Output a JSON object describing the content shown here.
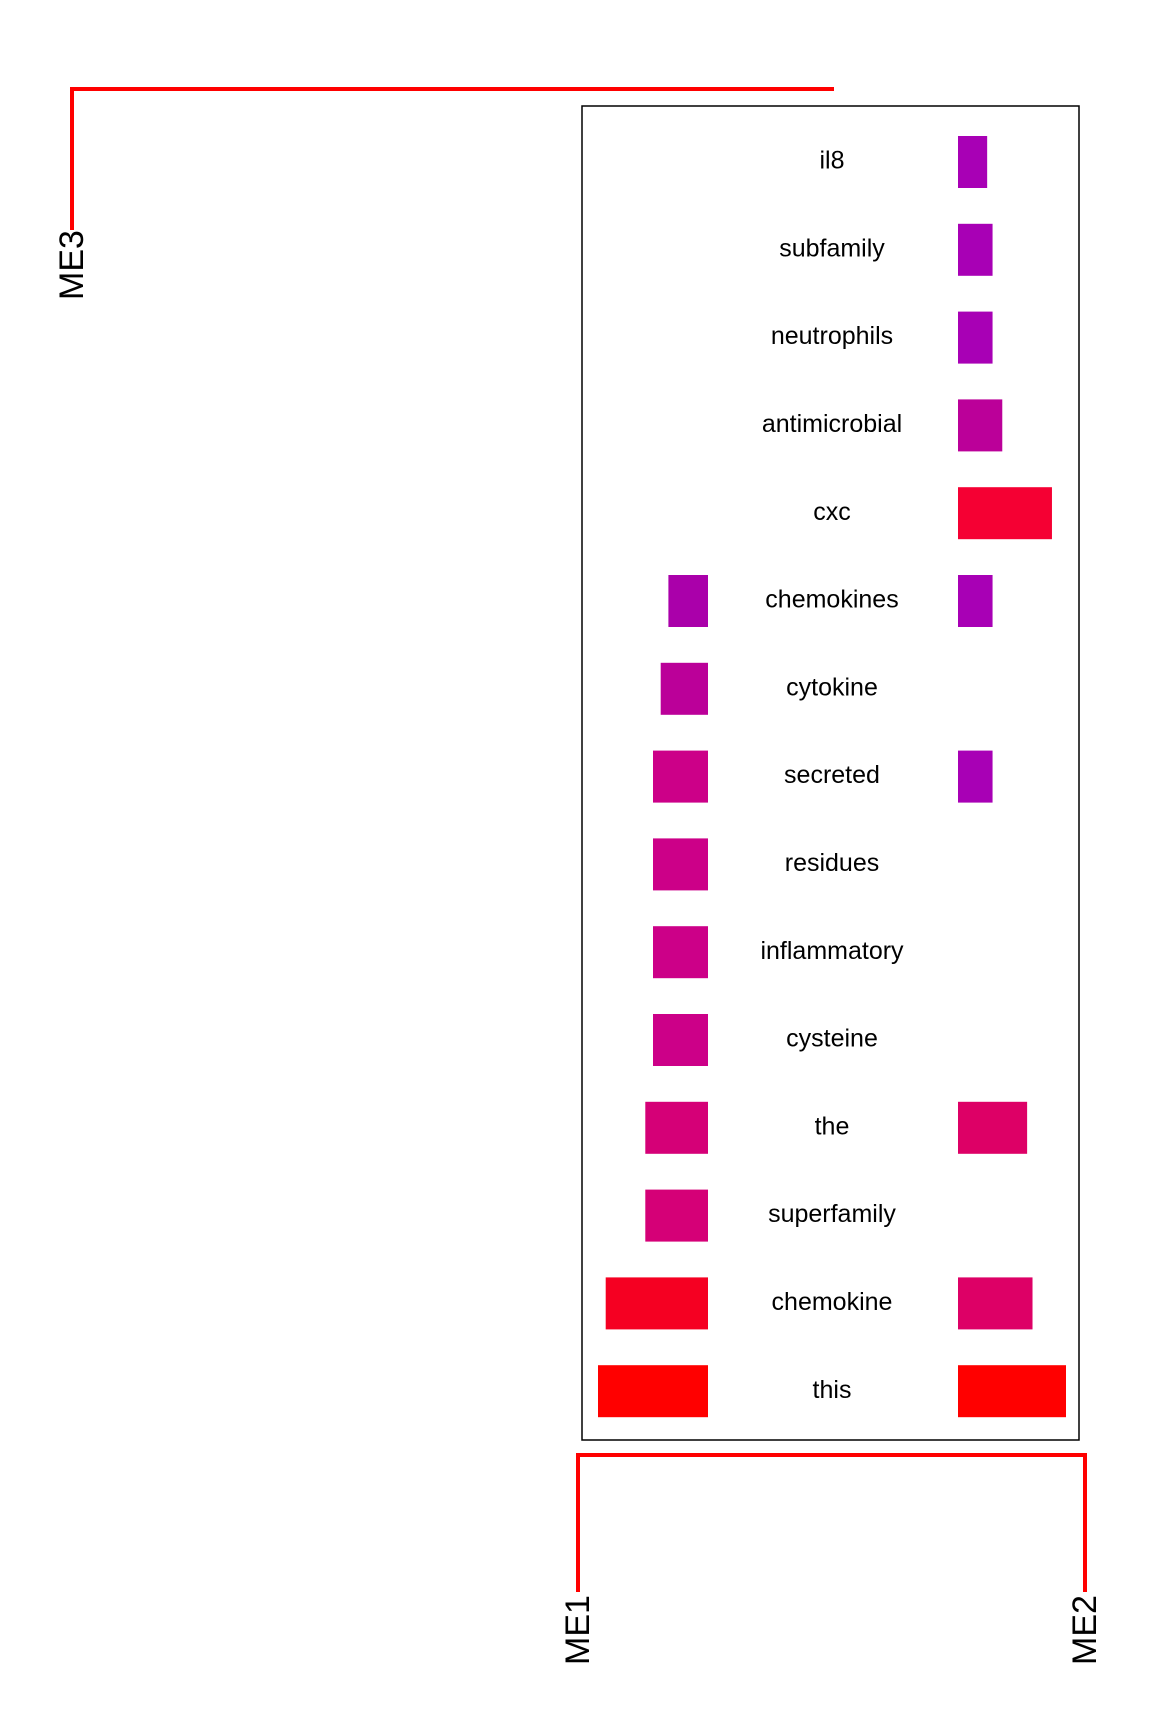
{
  "chart_data": {
    "type": "bar",
    "title": "",
    "xlabel": "",
    "ylabel": "",
    "categories": [
      "il8",
      "subfamily",
      "neutrophils",
      "antimicrobial",
      "cxc",
      "chemokines",
      "cytokine",
      "secreted",
      "residues",
      "inflammatory",
      "cysteine",
      "the",
      "superfamily",
      "chemokine",
      "this"
    ],
    "series": [
      {
        "name": "ME1",
        "values": [
          0,
          0,
          0,
          0,
          0,
          0.36,
          0.43,
          0.5,
          0.5,
          0.5,
          0.5,
          0.57,
          0.57,
          0.93,
          1.0
        ]
      },
      {
        "name": "ME2",
        "values": [
          0.27,
          0.32,
          0.32,
          0.41,
          0.87,
          0.32,
          0,
          0.32,
          0,
          0,
          0,
          0.64,
          0,
          0.69,
          1.0
        ]
      }
    ],
    "colors": {
      "ME1": [
        "#000000",
        "#000000",
        "#000000",
        "#000000",
        "#000000",
        "#AA00AA",
        "#BB0099",
        "#CC0088",
        "#CC0088",
        "#CC0088",
        "#CC0088",
        "#D50077",
        "#D50077",
        "#F50022",
        "#FF0000"
      ],
      "ME2": [
        "#A800B5",
        "#A800B5",
        "#A800B5",
        "#BB0099",
        "#F50033",
        "#A800B5",
        "#000000",
        "#A800B5",
        "#000000",
        "#000000",
        "#000000",
        "#DD0066",
        "#000000",
        "#DD0066",
        "#FF0000"
      ]
    },
    "dendrogram": {
      "top_leaf": "ME3",
      "bottom_leaves": [
        "ME1",
        "ME2"
      ],
      "line_color": "#FF0000"
    }
  }
}
